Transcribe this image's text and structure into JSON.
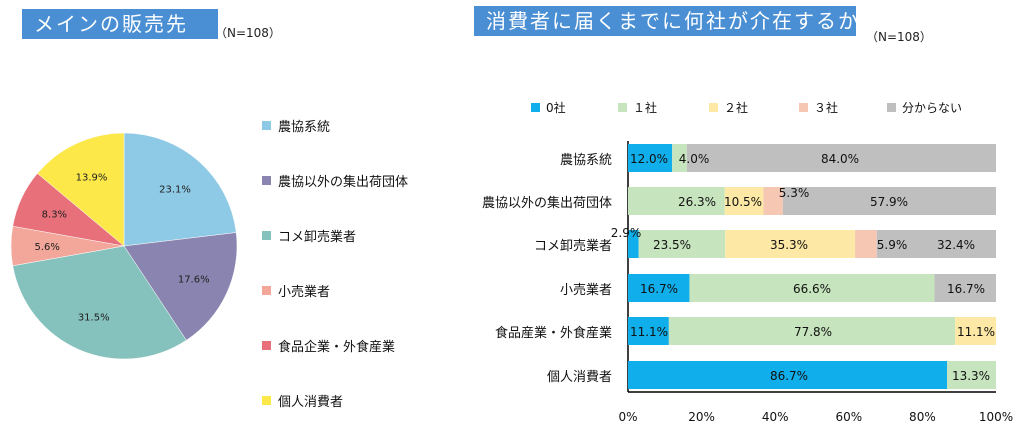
{
  "titles": {
    "left": "メインの販売先",
    "left_n": "（N=108）",
    "right": "消費者に届くまでに何社が介在するか",
    "right_n": "（N=108）"
  },
  "chart_data": [
    {
      "type": "pie",
      "title": "メインの販売先",
      "subtitle": "（N=108）",
      "legend_position": "right",
      "slices": [
        {
          "name": "農協系統",
          "value": 23.1,
          "label": "23.1%",
          "color": "#8ecae6"
        },
        {
          "name": "農協以外の集出荷団体",
          "value": 17.6,
          "label": "17.6%",
          "color": "#8a84b0"
        },
        {
          "name": "コメ卸売業者",
          "value": 31.5,
          "label": "31.5%",
          "color": "#86c2bd"
        },
        {
          "name": "小売業者",
          "value": 5.6,
          "label": "5.6%",
          "color": "#f2a79a"
        },
        {
          "name": "食品企業・外食産業",
          "value": 8.3,
          "label": "8.3%",
          "color": "#e8707a"
        },
        {
          "name": "個人消費者",
          "value": 13.9,
          "label": "13.9%",
          "color": "#fde84a"
        }
      ]
    },
    {
      "type": "bar",
      "orientation": "horizontal",
      "stacked": "percent",
      "title": "消費者に届くまでに何社が介在するか",
      "subtitle": "（N=108）",
      "legend_position": "top",
      "categories": [
        "農協系統",
        "農協以外の集出荷団体",
        "コメ卸売業者",
        "小売業者",
        "食品産業・外食産業",
        "個人消費者"
      ],
      "series": [
        {
          "name": "0社",
          "color": "#10aeea",
          "values": [
            12.0,
            0,
            2.9,
            16.7,
            11.1,
            86.7
          ]
        },
        {
          "name": "１社",
          "color": "#c6e4bd",
          "values": [
            4.0,
            26.3,
            23.5,
            66.6,
            77.8,
            13.3
          ]
        },
        {
          "name": "２社",
          "color": "#fde9a5",
          "values": [
            0,
            10.5,
            35.3,
            0,
            11.1,
            0
          ]
        },
        {
          "name": "３社",
          "color": "#f6c8b4",
          "values": [
            0,
            5.3,
            5.9,
            0,
            0,
            0
          ]
        },
        {
          "name": "分からない",
          "color": "#bfbfbf",
          "values": [
            84.0,
            57.9,
            32.4,
            16.7,
            0,
            0
          ]
        }
      ],
      "xlim": [
        0,
        100
      ],
      "x_ticks": [
        "0%",
        "20%",
        "40%",
        "60%",
        "80%",
        "100%"
      ]
    }
  ]
}
